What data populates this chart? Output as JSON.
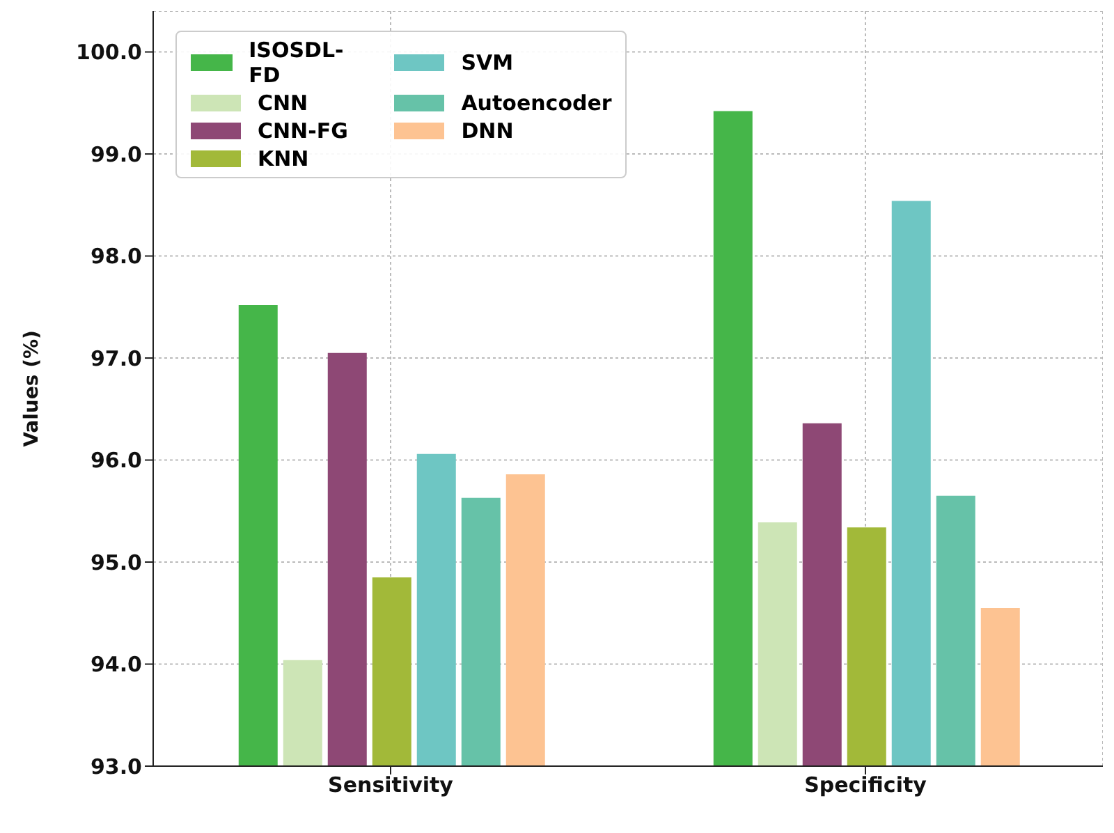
{
  "chart_data": {
    "type": "bar",
    "ylabel": "Values (%)",
    "categories": [
      "Sensitivity",
      "Specificity"
    ],
    "series": [
      {
        "name": "ISOSDL-FD",
        "color": "#45b649",
        "values": [
          97.52,
          99.42
        ]
      },
      {
        "name": "CNN",
        "color": "#cde5b6",
        "values": [
          94.04,
          95.39
        ]
      },
      {
        "name": "CNN-FG",
        "color": "#8e4875",
        "values": [
          97.05,
          96.36
        ]
      },
      {
        "name": "KNN",
        "color": "#a2b939",
        "values": [
          94.85,
          95.34
        ]
      },
      {
        "name": "SVM",
        "color": "#6ec6c3",
        "values": [
          96.06,
          98.54
        ]
      },
      {
        "name": "Autoencoder",
        "color": "#66c2a8",
        "values": [
          95.63,
          95.65
        ]
      },
      {
        "name": "DNN",
        "color": "#fdc392",
        "values": [
          95.86,
          94.55
        ]
      }
    ],
    "ylim": [
      93.0,
      100.4
    ],
    "yticks": [
      {
        "value": 93,
        "label": "93.0"
      },
      {
        "value": 94,
        "label": "94.0"
      },
      {
        "value": 95,
        "label": "95.0"
      },
      {
        "value": 96,
        "label": "96.0"
      },
      {
        "value": 97,
        "label": "97.0"
      },
      {
        "value": 98,
        "label": "98.0"
      },
      {
        "value": 99,
        "label": "99.0"
      },
      {
        "value": 100,
        "label": "100.0"
      }
    ],
    "grid": true,
    "legend": "top left"
  }
}
